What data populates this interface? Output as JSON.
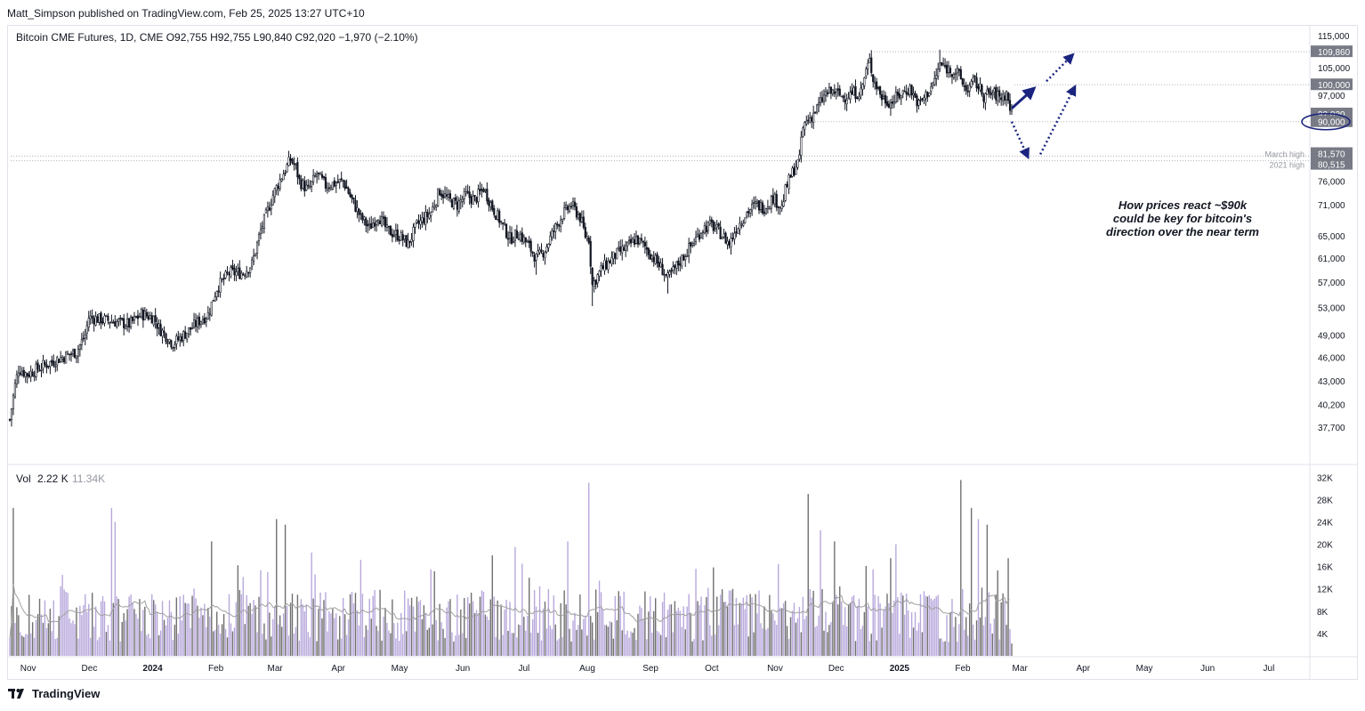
{
  "publisher_line": "Matt_Simpson published on TradingView.com, Feb 25, 2025 13:27 UTC+10",
  "footer": {
    "brand": "TradingView",
    "icon": "tradingview-logo-icon"
  },
  "colors": {
    "candle": "#131722",
    "vol_up": "#b8a8dc",
    "vol_down": "#707070",
    "vol_ma": "#a0a0a0",
    "annotation": "#1a237e",
    "price_label_bg": "#787b86",
    "grid_line": "#b2b5be"
  },
  "chart_data": {
    "type": "candlestick",
    "symbol_line": {
      "name": "Bitcoin CME Futures, 1D, CME",
      "open": "O92,755",
      "high": "H92,755",
      "low": "L90,840",
      "close": "C92,020",
      "change": "−1,970 (−2.10%)"
    },
    "y_scale": "log",
    "ylim": [
      36000,
      116500
    ],
    "y_ticks": [
      115000,
      105000,
      97000,
      90000,
      81570,
      80515,
      76000,
      71000,
      65000,
      61000,
      57000,
      53000,
      49000,
      46000,
      43000,
      40200,
      37700
    ],
    "y_tick_labels": [
      "115,000",
      "105,000",
      "97,000",
      "90,000",
      "81,570",
      "80,515",
      "76,000",
      "71,000",
      "65,000",
      "61,000",
      "57,000",
      "53,000",
      "49,000",
      "46,000",
      "43,000",
      "40,200",
      "37,700"
    ],
    "x_ticks": [
      "Nov",
      "Dec",
      "2024",
      "Feb",
      "Mar",
      "Apr",
      "May",
      "Jun",
      "Jul",
      "Aug",
      "Sep",
      "Oct",
      "Nov",
      "Dec",
      "2025",
      "Feb",
      "Mar",
      "Apr",
      "May",
      "Jun",
      "Jul"
    ],
    "bold_x_ticks": [
      "2024",
      "2025"
    ],
    "horizontal_levels": [
      {
        "value": 109860,
        "label": "109,860",
        "level_name": ""
      },
      {
        "value": 100000,
        "label": "100,000",
        "level_name": ""
      },
      {
        "value": 92020,
        "label": "92,020",
        "level_name": ""
      },
      {
        "value": 90000,
        "label": "90,000",
        "level_name": ""
      },
      {
        "value": 81570,
        "label": "81,570",
        "level_name": "March high"
      },
      {
        "value": 80515,
        "label": "80,515",
        "level_name": "2021 high"
      }
    ],
    "price_path_anchors": [
      [
        0,
        38500
      ],
      [
        3,
        42500
      ],
      [
        5,
        44500
      ],
      [
        10,
        43800
      ],
      [
        20,
        45000
      ],
      [
        30,
        46000
      ],
      [
        38,
        46700
      ],
      [
        43,
        49000
      ],
      [
        45,
        51500
      ],
      [
        58,
        51000
      ],
      [
        68,
        50500
      ],
      [
        75,
        52000
      ],
      [
        82,
        51500
      ],
      [
        85,
        50000
      ],
      [
        93,
        47800
      ],
      [
        100,
        49200
      ],
      [
        108,
        51000
      ],
      [
        113,
        52000
      ],
      [
        118,
        56000
      ],
      [
        125,
        58500
      ],
      [
        133,
        58500
      ],
      [
        138,
        60000
      ],
      [
        143,
        66000
      ],
      [
        150,
        73000
      ],
      [
        155,
        77000
      ],
      [
        160,
        80800
      ],
      [
        163,
        79000
      ],
      [
        165,
        76000
      ],
      [
        170,
        74000
      ],
      [
        175,
        77500
      ],
      [
        180,
        75000
      ],
      [
        190,
        76000
      ],
      [
        195,
        72000
      ],
      [
        200,
        68500
      ],
      [
        205,
        66500
      ],
      [
        210,
        69000
      ],
      [
        215,
        66000
      ],
      [
        222,
        65000
      ],
      [
        227,
        63500
      ],
      [
        232,
        67000
      ],
      [
        240,
        69500
      ],
      [
        245,
        74000
      ],
      [
        250,
        72000
      ],
      [
        255,
        71000
      ],
      [
        260,
        73000
      ],
      [
        265,
        72000
      ],
      [
        270,
        74500
      ],
      [
        275,
        70500
      ],
      [
        280,
        67500
      ],
      [
        285,
        64500
      ],
      [
        290,
        65500
      ],
      [
        295,
        63500
      ],
      [
        300,
        61000
      ],
      [
        302,
        61500
      ],
      [
        305,
        62500
      ],
      [
        310,
        66000
      ],
      [
        315,
        69000
      ],
      [
        320,
        71000
      ],
      [
        325,
        68500
      ],
      [
        328,
        65000
      ],
      [
        330,
        64500
      ],
      [
        332,
        56500
      ],
      [
        337,
        59000
      ],
      [
        345,
        61500
      ],
      [
        352,
        63000
      ],
      [
        357,
        64500
      ],
      [
        362,
        63000
      ],
      [
        367,
        61000
      ],
      [
        372,
        59000
      ],
      [
        375,
        57500
      ],
      [
        382,
        60500
      ],
      [
        390,
        64000
      ],
      [
        395,
        66500
      ],
      [
        400,
        67000
      ],
      [
        405,
        65500
      ],
      [
        410,
        63500
      ],
      [
        414,
        66500
      ],
      [
        420,
        69500
      ],
      [
        425,
        71000
      ],
      [
        430,
        70500
      ],
      [
        435,
        72500
      ],
      [
        440,
        70500
      ],
      [
        442,
        74000
      ],
      [
        445,
        77000
      ],
      [
        448,
        79500
      ],
      [
        450,
        80500
      ],
      [
        451,
        86000
      ],
      [
        453,
        89500
      ],
      [
        457,
        91500
      ],
      [
        460,
        93500
      ],
      [
        465,
        97500
      ],
      [
        470,
        98000
      ],
      [
        475,
        96500
      ],
      [
        480,
        97500
      ],
      [
        485,
        98000
      ],
      [
        488,
        104000
      ],
      [
        490,
        107000
      ],
      [
        492,
        102000
      ],
      [
        497,
        96500
      ],
      [
        502,
        95000
      ],
      [
        508,
        97500
      ],
      [
        513,
        99000
      ],
      [
        518,
        94500
      ],
      [
        522,
        97000
      ],
      [
        527,
        101000
      ],
      [
        530,
        106000
      ],
      [
        535,
        104500
      ],
      [
        540,
        103500
      ],
      [
        545,
        98500
      ],
      [
        550,
        101000
      ],
      [
        555,
        97000
      ],
      [
        560,
        97500
      ],
      [
        565,
        96500
      ],
      [
        568,
        97500
      ],
      [
        571,
        92020
      ]
    ],
    "daily_candle_count": 572,
    "volume_label": "Vol",
    "volume_value": "2.22 K",
    "volume_ma_value": "11.34K",
    "volume_ylim": [
      0,
      33000
    ],
    "volume_ticks": [
      32000,
      28000,
      24000,
      20000,
      16000,
      12000,
      8000,
      4000
    ],
    "volume_tick_labels": [
      "32K",
      "28K",
      "24K",
      "20K",
      "16K",
      "12K",
      "8K",
      "4K"
    ],
    "volume_spikes": [
      [
        2,
        26500
      ],
      [
        30,
        14500
      ],
      [
        58,
        26500
      ],
      [
        60,
        24000
      ],
      [
        115,
        20500
      ],
      [
        152,
        24500
      ],
      [
        157,
        23500
      ],
      [
        172,
        18500
      ],
      [
        240,
        15500
      ],
      [
        275,
        18000
      ],
      [
        288,
        19500
      ],
      [
        292,
        16500
      ],
      [
        318,
        20500
      ],
      [
        330,
        31000
      ],
      [
        455,
        29000
      ],
      [
        462,
        22500
      ],
      [
        470,
        20500
      ],
      [
        492,
        15500
      ],
      [
        502,
        17500
      ],
      [
        505,
        20000
      ],
      [
        542,
        31500
      ],
      [
        548,
        26500
      ],
      [
        552,
        24500
      ],
      [
        557,
        23500
      ],
      [
        569,
        17500
      ],
      [
        571,
        2200
      ]
    ],
    "volume_typical": 10000,
    "annotations": {
      "text_lines": [
        "How prices react ~$90k",
        "could be key for bitcoin's",
        "direction over the near term"
      ],
      "circled_level": "90,000",
      "arrows": [
        {
          "style": "solid",
          "from": [
            "2025-02-25",
            93500
          ],
          "to": [
            "2025-03-08",
            99000
          ]
        },
        {
          "style": "dotted",
          "from": [
            "2025-03-14",
            101000
          ],
          "to": [
            "2025-03-27",
            109000
          ]
        },
        {
          "style": "dotted",
          "from": [
            "2025-02-25",
            90000
          ],
          "to": [
            "2025-03-05",
            81300
          ]
        },
        {
          "style": "dotted",
          "from": [
            "2025-03-11",
            82000
          ],
          "to": [
            "2025-03-28",
            99500
          ]
        }
      ]
    }
  }
}
